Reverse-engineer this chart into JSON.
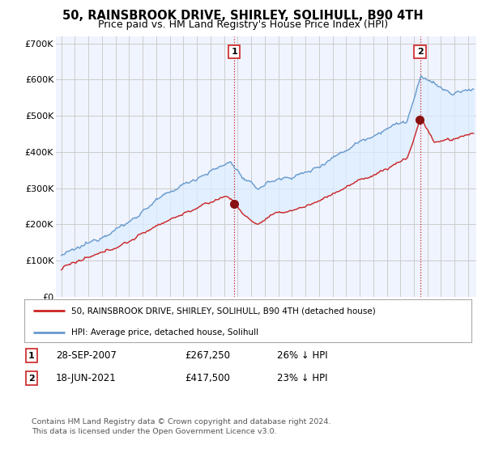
{
  "title": "50, RAINSBROOK DRIVE, SHIRLEY, SOLIHULL, B90 4TH",
  "subtitle": "Price paid vs. HM Land Registry's House Price Index (HPI)",
  "title_fontsize": 10.5,
  "subtitle_fontsize": 9,
  "ylabel_ticks": [
    "£0",
    "£100K",
    "£200K",
    "£300K",
    "£400K",
    "£500K",
    "£600K",
    "£700K"
  ],
  "ytick_values": [
    0,
    100000,
    200000,
    300000,
    400000,
    500000,
    600000,
    700000
  ],
  "ylim": [
    0,
    720000
  ],
  "xlim_start": 1994.6,
  "xlim_end": 2025.6,
  "hpi_color": "#6699cc",
  "hpi_fill_color": "#ddeeff",
  "price_color": "#cc2222",
  "vline_color": "#cc2222",
  "vline_style": ":",
  "background_color": "#ffffff",
  "plot_bg_color": "#f0f4ff",
  "grid_color": "#cccccc",
  "transactions": [
    {
      "label": "1",
      "date": 2007.75,
      "price": 267250
    },
    {
      "label": "2",
      "date": 2021.46,
      "price": 417500
    }
  ],
  "legend_entries": [
    "50, RAINSBROOK DRIVE, SHIRLEY, SOLIHULL, B90 4TH (detached house)",
    "HPI: Average price, detached house, Solihull"
  ],
  "footer_lines": [
    "Contains HM Land Registry data © Crown copyright and database right 2024.",
    "This data is licensed under the Open Government Licence v3.0."
  ],
  "table_rows": [
    [
      "1",
      "28-SEP-2007",
      "£267,250",
      "26% ↓ HPI"
    ],
    [
      "2",
      "18-JUN-2021",
      "£417,500",
      "23% ↓ HPI"
    ]
  ]
}
